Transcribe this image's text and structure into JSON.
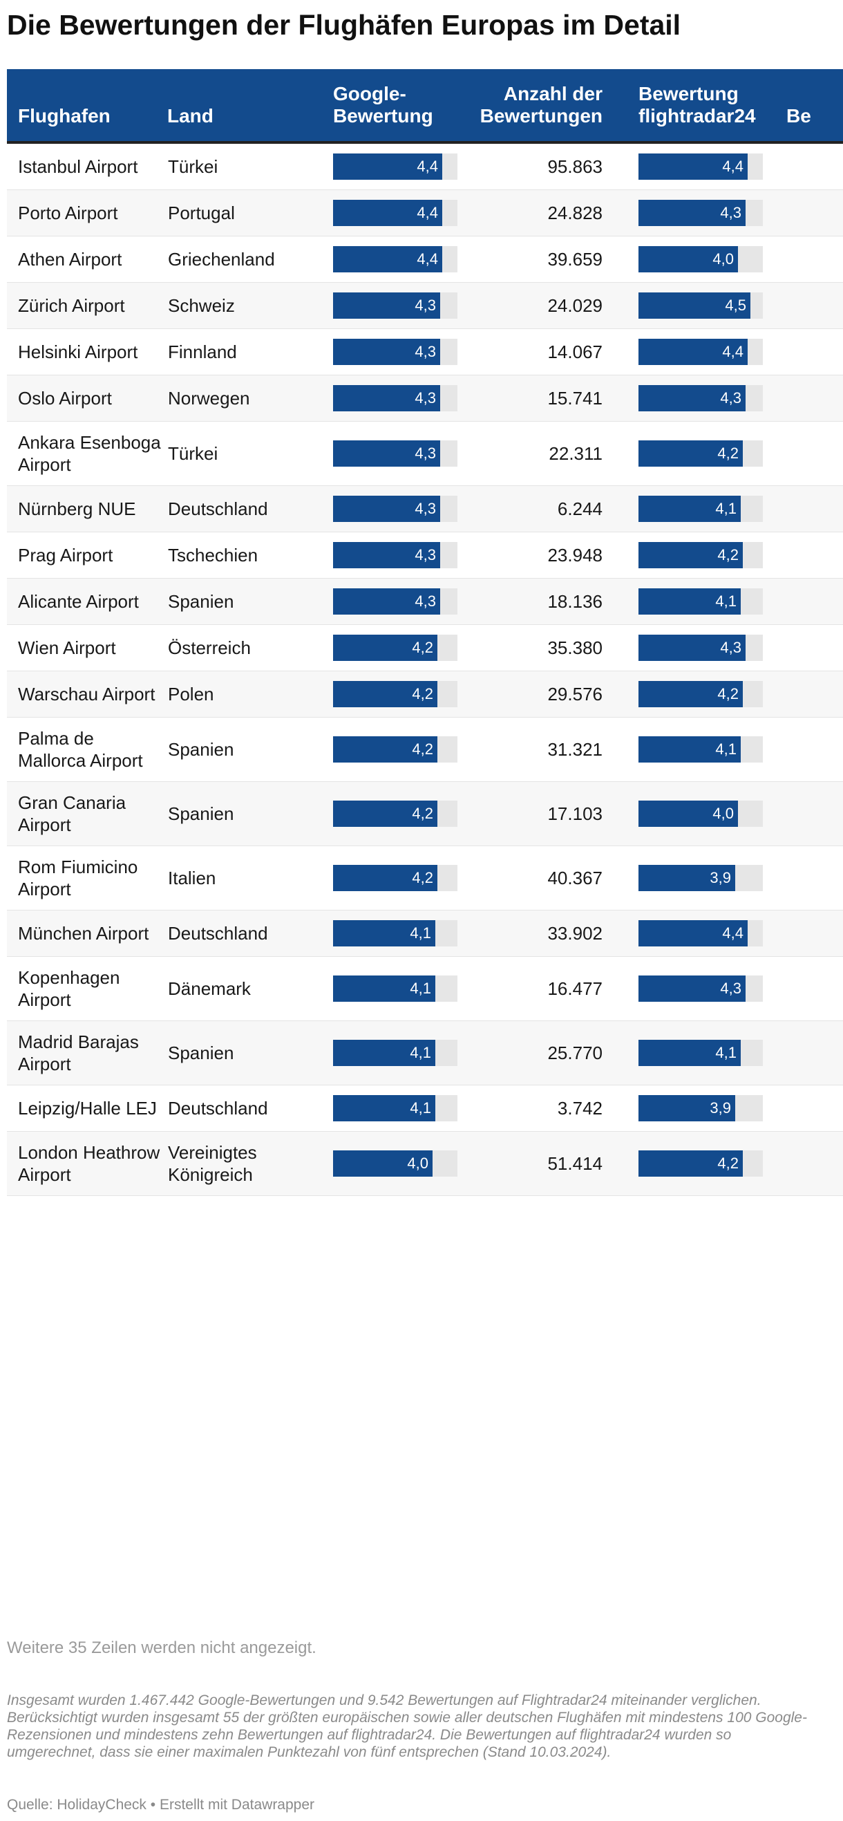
{
  "title": "Die Bewertungen der Flughäfen Europas im Detail",
  "columns": {
    "airport": "Flughafen",
    "country": "Land",
    "google_line1": "Google-",
    "google_line2": "Bewertung",
    "count_line1": "Anzahl der",
    "count_line2": "Bewertungen",
    "fr24_line1": "Bewertung",
    "fr24_line2": "flightradar24",
    "extra": "Be"
  },
  "scale_max": 5,
  "colors": {
    "header_bg": "#134b8d",
    "bar": "#134b8d",
    "bar_track": "#e6e6e6"
  },
  "rows": [
    {
      "airport": "Istanbul Airport",
      "country": "Türkei",
      "google": 4.4,
      "google_label": "4,4",
      "count": "95.863",
      "fr24": 4.4,
      "fr24_label": "4,4"
    },
    {
      "airport": "Porto Airport",
      "country": "Portugal",
      "google": 4.4,
      "google_label": "4,4",
      "count": "24.828",
      "fr24": 4.3,
      "fr24_label": "4,3"
    },
    {
      "airport": "Athen Airport",
      "country": "Griechenland",
      "google": 4.4,
      "google_label": "4,4",
      "count": "39.659",
      "fr24": 4.0,
      "fr24_label": "4,0"
    },
    {
      "airport": "Zürich Airport",
      "country": "Schweiz",
      "google": 4.3,
      "google_label": "4,3",
      "count": "24.029",
      "fr24": 4.5,
      "fr24_label": "4,5"
    },
    {
      "airport": "Helsinki Airport",
      "country": "Finnland",
      "google": 4.3,
      "google_label": "4,3",
      "count": "14.067",
      "fr24": 4.4,
      "fr24_label": "4,4"
    },
    {
      "airport": "Oslo Airport",
      "country": "Norwegen",
      "google": 4.3,
      "google_label": "4,3",
      "count": "15.741",
      "fr24": 4.3,
      "fr24_label": "4,3"
    },
    {
      "airport": "Ankara Esenboga Airport",
      "country": "Türkei",
      "google": 4.3,
      "google_label": "4,3",
      "count": "22.311",
      "fr24": 4.2,
      "fr24_label": "4,2"
    },
    {
      "airport": "Nürnberg NUE",
      "country": "Deutschland",
      "google": 4.3,
      "google_label": "4,3",
      "count": "6.244",
      "fr24": 4.1,
      "fr24_label": "4,1"
    },
    {
      "airport": "Prag Airport",
      "country": "Tschechien",
      "google": 4.3,
      "google_label": "4,3",
      "count": "23.948",
      "fr24": 4.2,
      "fr24_label": "4,2"
    },
    {
      "airport": "Alicante Airport",
      "country": "Spanien",
      "google": 4.3,
      "google_label": "4,3",
      "count": "18.136",
      "fr24": 4.1,
      "fr24_label": "4,1"
    },
    {
      "airport": "Wien Airport",
      "country": "Österreich",
      "google": 4.2,
      "google_label": "4,2",
      "count": "35.380",
      "fr24": 4.3,
      "fr24_label": "4,3"
    },
    {
      "airport": "Warschau Airport",
      "country": "Polen",
      "google": 4.2,
      "google_label": "4,2",
      "count": "29.576",
      "fr24": 4.2,
      "fr24_label": "4,2"
    },
    {
      "airport": "Palma de Mallorca Airport",
      "country": "Spanien",
      "google": 4.2,
      "google_label": "4,2",
      "count": "31.321",
      "fr24": 4.1,
      "fr24_label": "4,1"
    },
    {
      "airport": "Gran Canaria Airport",
      "country": "Spanien",
      "google": 4.2,
      "google_label": "4,2",
      "count": "17.103",
      "fr24": 4.0,
      "fr24_label": "4,0"
    },
    {
      "airport": "Rom Fiumicino Airport",
      "country": "Italien",
      "google": 4.2,
      "google_label": "4,2",
      "count": "40.367",
      "fr24": 3.9,
      "fr24_label": "3,9"
    },
    {
      "airport": "München Airport",
      "country": "Deutschland",
      "google": 4.1,
      "google_label": "4,1",
      "count": "33.902",
      "fr24": 4.4,
      "fr24_label": "4,4"
    },
    {
      "airport": "Kopenhagen Airport",
      "country": "Dänemark",
      "google": 4.1,
      "google_label": "4,1",
      "count": "16.477",
      "fr24": 4.3,
      "fr24_label": "4,3"
    },
    {
      "airport": "Madrid Barajas Airport",
      "country": "Spanien",
      "google": 4.1,
      "google_label": "4,1",
      "count": "25.770",
      "fr24": 4.1,
      "fr24_label": "4,1"
    },
    {
      "airport": "Leipzig/Halle LEJ",
      "country": "Deutschland",
      "google": 4.1,
      "google_label": "4,1",
      "count": "3.742",
      "fr24": 3.9,
      "fr24_label": "3,9"
    },
    {
      "airport": "London Heathrow Airport",
      "country": "Vereinigtes Königreich",
      "google": 4.0,
      "google_label": "4,0",
      "count": "51.414",
      "fr24": 4.2,
      "fr24_label": "4,2"
    }
  ],
  "hidden_rows_note": "Weitere 35 Zeilen werden nicht angezeigt.",
  "description": "Insgesamt wurden 1.467.442 Google-Bewertungen und 9.542 Bewertungen auf Flightradar24 miteinander verglichen. Berücksichtigt wurden insgesamt 55 der größten europäischen sowie aller deutschen Flughäfen mit mindestens 100 Google-Rezensionen und mindestens zehn Bewertungen auf flightradar24. Die Bewertungen auf flightradar24 wurden so umgerechnet, dass sie einer maximalen Punktezahl von fünf entsprechen (Stand 10.03.2024).",
  "source": "Quelle: HolidayCheck • Erstellt mit Datawrapper"
}
